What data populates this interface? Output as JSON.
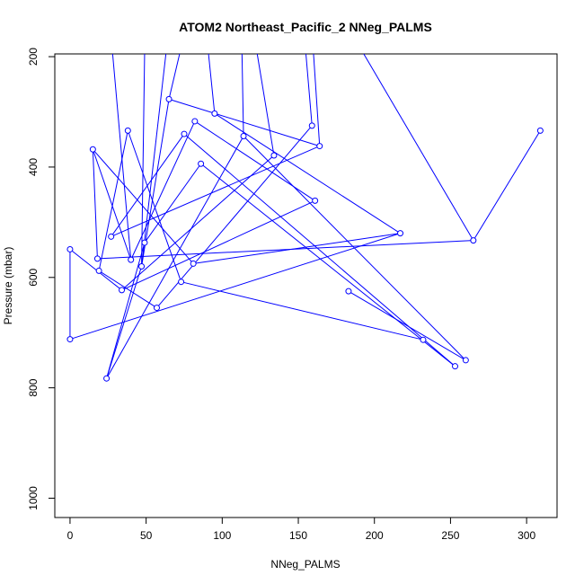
{
  "chart_data": {
    "type": "line",
    "title": "ATOM2 Northeast_Pacific_2 NNeg_PALMS",
    "xlabel": "NNeg_PALMS",
    "ylabel": "Pressure (mbar)",
    "xlim": [
      -10,
      320
    ],
    "ylim": [
      1035,
      195
    ],
    "y_reversed": true,
    "x_ticks": [
      0,
      50,
      100,
      150,
      200,
      250,
      300
    ],
    "y_ticks": [
      200,
      400,
      600,
      800,
      1000
    ],
    "grid": false,
    "legend": "none",
    "series": [
      {
        "color": "#0000ff",
        "marker": "open-circle",
        "off_plot_top": [
          {
            "x": 28,
            "y": 195
          },
          {
            "x": 49,
            "y": 195
          },
          {
            "x": 63,
            "y": 195
          },
          {
            "x": 72,
            "y": 195
          },
          {
            "x": 91,
            "y": 195
          },
          {
            "x": 113,
            "y": 195
          },
          {
            "x": 123,
            "y": 195
          },
          {
            "x": 155,
            "y": 195
          },
          {
            "x": 160,
            "y": 195
          },
          {
            "x": 193,
            "y": 195
          }
        ],
        "points": [
          {
            "x": 0,
            "y": 712
          },
          {
            "x": 0,
            "y": 549
          },
          {
            "x": 24,
            "y": 783
          },
          {
            "x": 15,
            "y": 368
          },
          {
            "x": 18,
            "y": 566
          },
          {
            "x": 19,
            "y": 588
          },
          {
            "x": 27,
            "y": 526
          },
          {
            "x": 34,
            "y": 623
          },
          {
            "x": 38,
            "y": 334
          },
          {
            "x": 40,
            "y": 568
          },
          {
            "x": 47,
            "y": 580
          },
          {
            "x": 49,
            "y": 537
          },
          {
            "x": 57,
            "y": 655
          },
          {
            "x": 65,
            "y": 277
          },
          {
            "x": 73,
            "y": 608
          },
          {
            "x": 75,
            "y": 340
          },
          {
            "x": 81,
            "y": 575
          },
          {
            "x": 82,
            "y": 317
          },
          {
            "x": 86,
            "y": 394
          },
          {
            "x": 95,
            "y": 303
          },
          {
            "x": 114,
            "y": 344
          },
          {
            "x": 134,
            "y": 379
          },
          {
            "x": 159,
            "y": 325
          },
          {
            "x": 161,
            "y": 461
          },
          {
            "x": 164,
            "y": 362
          },
          {
            "x": 183,
            "y": 625
          },
          {
            "x": 217,
            "y": 520
          },
          {
            "x": 232,
            "y": 713
          },
          {
            "x": 253,
            "y": 761
          },
          {
            "x": 260,
            "y": 750
          },
          {
            "x": 265,
            "y": 533
          },
          {
            "x": 309,
            "y": 334
          }
        ]
      }
    ]
  }
}
